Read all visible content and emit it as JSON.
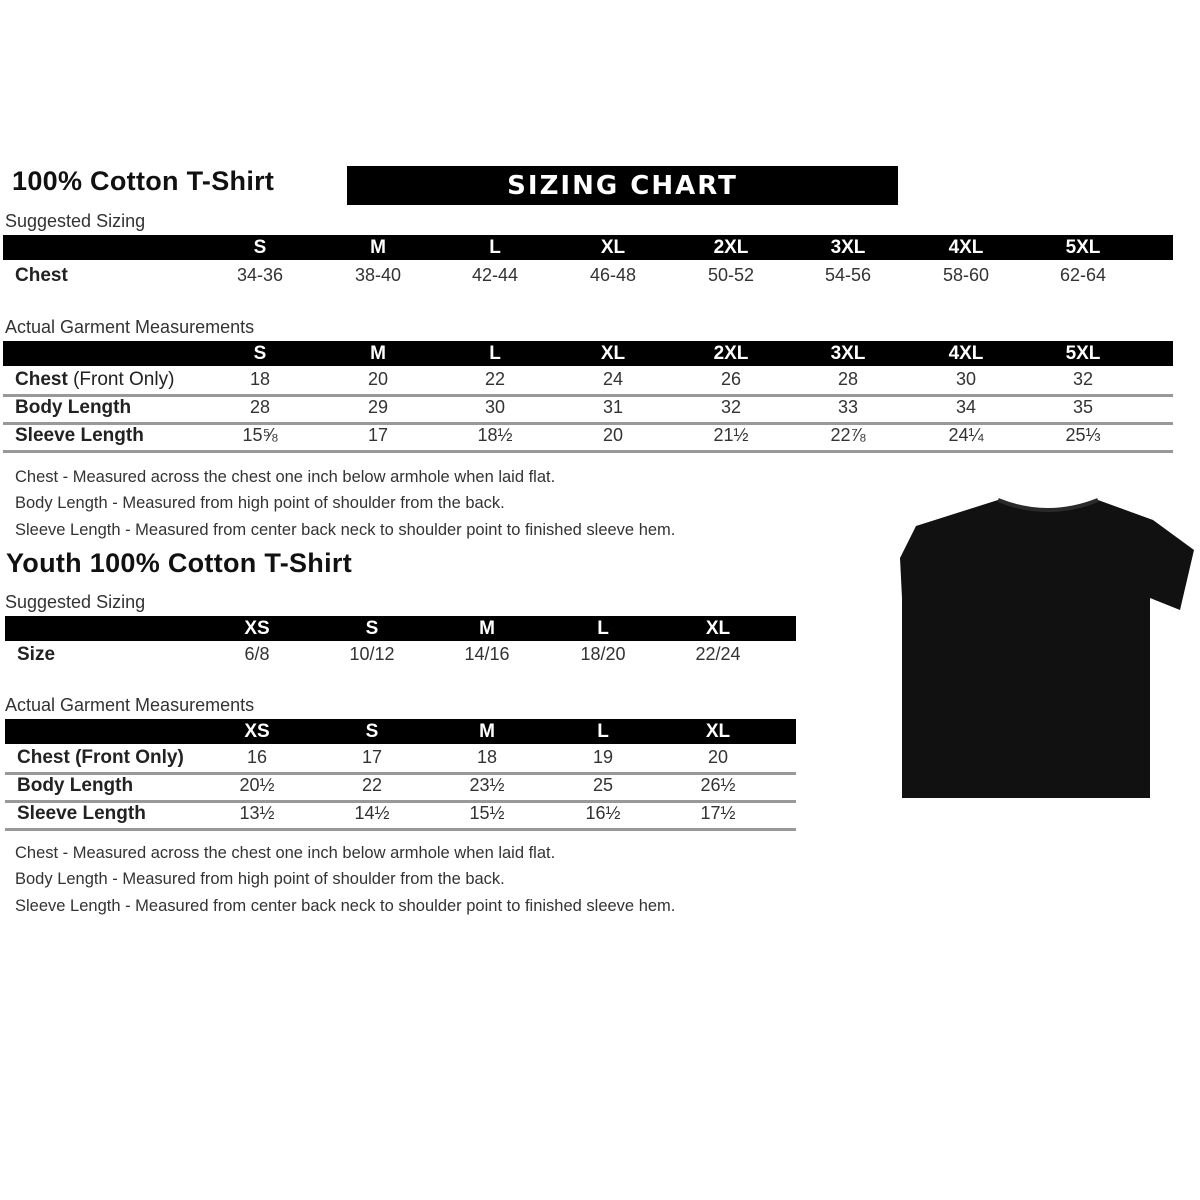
{
  "adult": {
    "title": "100% Cotton T-Shirt",
    "banner": "SIZING CHART",
    "suggested_label": "Suggested Sizing",
    "sizes": [
      "S",
      "M",
      "L",
      "XL",
      "2XL",
      "3XL",
      "4XL",
      "5XL"
    ],
    "suggested_rows": [
      {
        "label": "Chest",
        "values": [
          "34-36",
          "38-40",
          "42-44",
          "46-48",
          "50-52",
          "54-56",
          "58-60",
          "62-64"
        ]
      }
    ],
    "actual_label": "Actual Garment Measurements",
    "actual_rows": [
      {
        "label": "Chest",
        "label_note": " (Front Only)",
        "values": [
          "18",
          "20",
          "22",
          "24",
          "26",
          "28",
          "30",
          "32"
        ]
      },
      {
        "label": "Body Length",
        "values": [
          "28",
          "29",
          "30",
          "31",
          "32",
          "33",
          "34",
          "35"
        ]
      },
      {
        "label": "Sleeve Length",
        "values": [
          "15⅝",
          "17",
          "18½",
          "20",
          "21½",
          "22⅞",
          "24¼",
          "25⅓"
        ]
      }
    ],
    "notes": [
      "Chest - Measured across the chest one inch below armhole when laid flat.",
      "Body Length - Measured from high point of shoulder from the back.",
      "Sleeve Length - Measured from center back neck to shoulder point to finished sleeve hem."
    ]
  },
  "youth": {
    "title": "Youth 100% Cotton T-Shirt",
    "suggested_label": "Suggested Sizing",
    "sizes": [
      "XS",
      "S",
      "M",
      "L",
      "XL"
    ],
    "suggested_rows": [
      {
        "label": "Size",
        "values": [
          "6/8",
          "10/12",
          "14/16",
          "18/20",
          "22/24"
        ]
      }
    ],
    "actual_label": "Actual Garment Measurements",
    "actual_rows": [
      {
        "label": "Chest (Front Only)",
        "values": [
          "16",
          "17",
          "18",
          "19",
          "20"
        ]
      },
      {
        "label": "Body Length",
        "values": [
          "20½",
          "22",
          "23½",
          "25",
          "26½"
        ]
      },
      {
        "label": "Sleeve Length",
        "values": [
          "13½",
          "14½",
          "15½",
          "16½",
          "17½"
        ]
      }
    ],
    "notes": [
      "Chest - Measured across the chest one inch below armhole when laid flat.",
      "Body Length - Measured from high point of shoulder from the back.",
      "Sleeve Length - Measured from center back neck to shoulder point to finished sleeve hem."
    ]
  },
  "image": {
    "icon": "tshirt-icon",
    "color": "#111111"
  }
}
